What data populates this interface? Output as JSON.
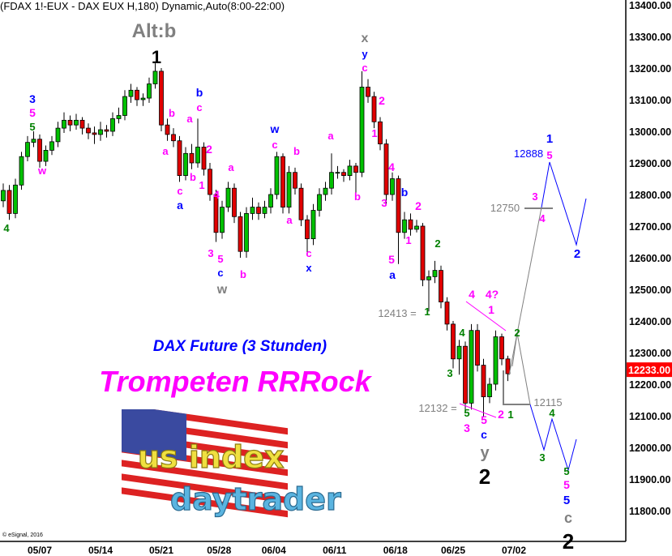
{
  "header": {
    "title": "(FDAX 1!-EUX - DAX EUX H,180) Dynamic,Auto(8:00-22:00)"
  },
  "notes": {
    "subtitle": "DAX Future (3 Stunden)",
    "headline": "Trompeten RRRock",
    "copyright": "© eSignal, 2016"
  },
  "logo": {
    "line1": "us index",
    "line2": "daytrader"
  },
  "colors": {
    "up": "#00c000",
    "down": "#e00000",
    "last_price_bg": "#ff0000",
    "magenta": "#ff00ff",
    "blue": "#0000ff",
    "green": "#008000",
    "gray": "#808080"
  },
  "chart_data": {
    "type": "candlestick",
    "title": "(FDAX 1!-EUX - DAX EUX H,180) Dynamic,Auto(8:00-22:00)",
    "ylim": [
      11730,
      13420
    ],
    "yticks": [
      "13400.00",
      "13300.00",
      "13200.00",
      "13100.00",
      "13000.00",
      "12900.00",
      "12800.00",
      "12700.00",
      "12600.00",
      "12500.00",
      "12400.00",
      "12300.00",
      "12200.00",
      "12100.00",
      "12000.00",
      "11900.00",
      "11800.00"
    ],
    "xticks": [
      {
        "label": "05/07",
        "bar": 6
      },
      {
        "label": "05/14",
        "bar": 16
      },
      {
        "label": "05/21",
        "bar": 26
      },
      {
        "label": "05/28",
        "bar": 35.5
      },
      {
        "label": "06/04",
        "bar": 44.5
      },
      {
        "label": "06/11",
        "bar": 54.5
      },
      {
        "label": "06/18",
        "bar": 64.5
      },
      {
        "label": "06/25",
        "bar": 74
      },
      {
        "label": "07/02",
        "bar": 84
      }
    ],
    "last_price": "12233.00",
    "ohlc": [
      [
        12780,
        12835,
        12760,
        12813
      ],
      [
        12813,
        12830,
        12720,
        12740
      ],
      [
        12740,
        12850,
        12725,
        12830
      ],
      [
        12830,
        12935,
        12815,
        12920
      ],
      [
        12920,
        12985,
        12905,
        12965
      ],
      [
        12965,
        13000,
        12950,
        12975
      ],
      [
        12975,
        12990,
        12885,
        12905
      ],
      [
        12905,
        12955,
        12890,
        12940
      ],
      [
        12940,
        12985,
        12925,
        12967
      ],
      [
        12967,
        13030,
        12950,
        13010
      ],
      [
        13010,
        13060,
        12995,
        13035
      ],
      [
        13035,
        13050,
        13000,
        13020
      ],
      [
        13020,
        13055,
        13005,
        13035
      ],
      [
        13035,
        13045,
        12990,
        13010
      ],
      [
        13010,
        13025,
        12975,
        12995
      ],
      [
        12995,
        13015,
        12960,
        12990
      ],
      [
        12990,
        13030,
        12970,
        13005
      ],
      [
        13005,
        13020,
        12980,
        13000
      ],
      [
        13000,
        13060,
        12985,
        13040
      ],
      [
        13040,
        13075,
        13025,
        13050
      ],
      [
        13050,
        13130,
        13035,
        13110
      ],
      [
        13110,
        13150,
        13090,
        13130
      ],
      [
        13130,
        13140,
        13080,
        13100
      ],
      [
        13100,
        13120,
        13080,
        13105
      ],
      [
        13105,
        13170,
        13090,
        13150
      ],
      [
        13150,
        13215,
        13135,
        13190
      ],
      [
        13190,
        13200,
        13000,
        13020
      ],
      [
        13020,
        13040,
        12970,
        12990
      ],
      [
        12990,
        13010,
        12950,
        12970
      ],
      [
        12970,
        12985,
        12840,
        12860
      ],
      [
        12860,
        12950,
        12845,
        12930
      ],
      [
        12930,
        12960,
        12880,
        12900
      ],
      [
        12900,
        13040,
        12885,
        12950
      ],
      [
        12950,
        12965,
        12860,
        12880
      ],
      [
        12880,
        12900,
        12780,
        12800
      ],
      [
        12800,
        12815,
        12650,
        12680
      ],
      [
        12680,
        12780,
        12660,
        12760
      ],
      [
        12760,
        12840,
        12745,
        12820
      ],
      [
        12820,
        12835,
        12710,
        12730
      ],
      [
        12730,
        12745,
        12600,
        12620
      ],
      [
        12620,
        12760,
        12600,
        12740
      ],
      [
        12740,
        12790,
        12720,
        12760
      ],
      [
        12760,
        12775,
        12720,
        12740
      ],
      [
        12740,
        12780,
        12725,
        12760
      ],
      [
        12760,
        12820,
        12740,
        12800
      ],
      [
        12800,
        12935,
        12785,
        12920
      ],
      [
        12920,
        12930,
        12740,
        12760
      ],
      [
        12760,
        12890,
        12740,
        12870
      ],
      [
        12870,
        12885,
        12800,
        12820
      ],
      [
        12820,
        12835,
        12700,
        12720
      ],
      [
        12720,
        12735,
        12610,
        12660
      ],
      [
        12660,
        12770,
        12640,
        12750
      ],
      [
        12750,
        12820,
        12730,
        12800
      ],
      [
        12800,
        12840,
        12780,
        12820
      ],
      [
        12820,
        12930,
        12800,
        12870
      ],
      [
        12870,
        12890,
        12850,
        12870
      ],
      [
        12870,
        12880,
        12840,
        12860
      ],
      [
        12860,
        12910,
        12845,
        12890
      ],
      [
        12890,
        12900,
        12800,
        12870
      ],
      [
        12870,
        13190,
        12855,
        13140
      ],
      [
        13140,
        13165,
        13090,
        13110
      ],
      [
        13110,
        13125,
        13010,
        13030
      ],
      [
        13030,
        13045,
        12940,
        12960
      ],
      [
        12960,
        12975,
        12770,
        12800
      ],
      [
        12800,
        12870,
        12780,
        12850
      ],
      [
        12850,
        12860,
        12580,
        12680
      ],
      [
        12680,
        12745,
        12660,
        12720
      ],
      [
        12720,
        12740,
        12670,
        12690
      ],
      [
        12690,
        12720,
        12680,
        12700
      ],
      [
        12700,
        12710,
        12510,
        12530
      ],
      [
        12530,
        12560,
        12430,
        12540
      ],
      [
        12540,
        12590,
        12520,
        12560
      ],
      [
        12560,
        12575,
        12440,
        12460
      ],
      [
        12460,
        12475,
        12370,
        12390
      ],
      [
        12390,
        12400,
        12250,
        12280
      ],
      [
        12280,
        12340,
        12230,
        12320
      ],
      [
        12320,
        12335,
        12110,
        12140
      ],
      [
        12140,
        12390,
        12120,
        12370
      ],
      [
        12370,
        12390,
        12240,
        12260
      ],
      [
        12260,
        12280,
        12095,
        12160
      ],
      [
        12160,
        12220,
        12140,
        12200
      ],
      [
        12200,
        12370,
        12180,
        12350
      ],
      [
        12350,
        12360,
        12260,
        12280
      ],
      [
        12280,
        12290,
        12210,
        12233
      ]
    ],
    "annotations": [
      {
        "text": "Alt:b",
        "color": "gray"
      },
      {
        "text": "1",
        "color": "black"
      },
      {
        "text": "3",
        "color": "blue"
      },
      {
        "text": "5",
        "color": "magenta"
      },
      {
        "text": "5",
        "color": "green"
      },
      {
        "text": "w",
        "color": "magenta"
      },
      {
        "text": "4",
        "color": "green"
      },
      {
        "text": "a",
        "color": "magenta"
      },
      {
        "text": "b",
        "color": "magenta"
      },
      {
        "text": "c",
        "color": "magenta"
      },
      {
        "text": "a",
        "color": "blue"
      },
      {
        "text": "a",
        "color": "magenta"
      },
      {
        "text": "b",
        "color": "magenta"
      },
      {
        "text": "b",
        "color": "blue"
      },
      {
        "text": "c",
        "color": "magenta"
      },
      {
        "text": "2",
        "color": "magenta"
      },
      {
        "text": "1",
        "color": "magenta"
      },
      {
        "text": "4",
        "color": "magenta"
      },
      {
        "text": "a",
        "color": "magenta"
      },
      {
        "text": "3",
        "color": "magenta"
      },
      {
        "text": "5",
        "color": "magenta"
      },
      {
        "text": "c",
        "color": "blue"
      },
      {
        "text": "w",
        "color": "gray"
      },
      {
        "text": "b",
        "color": "magenta"
      },
      {
        "text": "w",
        "color": "blue"
      },
      {
        "text": "c",
        "color": "magenta"
      },
      {
        "text": "b",
        "color": "magenta"
      },
      {
        "text": "a",
        "color": "magenta"
      },
      {
        "text": "a",
        "color": "magenta"
      },
      {
        "text": "c",
        "color": "magenta"
      },
      {
        "text": "x",
        "color": "blue"
      },
      {
        "text": "b",
        "color": "magenta"
      },
      {
        "text": "x",
        "color": "gray"
      },
      {
        "text": "y",
        "color": "blue"
      },
      {
        "text": "c",
        "color": "magenta"
      },
      {
        "text": "2",
        "color": "magenta"
      },
      {
        "text": "1",
        "color": "magenta"
      },
      {
        "text": "4",
        "color": "magenta"
      },
      {
        "text": "3",
        "color": "magenta"
      },
      {
        "text": "b",
        "color": "blue"
      },
      {
        "text": "2",
        "color": "magenta"
      },
      {
        "text": "1",
        "color": "magenta"
      },
      {
        "text": "5",
        "color": "magenta"
      },
      {
        "text": "a",
        "color": "blue"
      },
      {
        "text": "2",
        "color": "green"
      },
      {
        "text": "12413 =",
        "color": "gray"
      },
      {
        "text": "1",
        "color": "green"
      },
      {
        "text": "4",
        "color": "magenta"
      },
      {
        "text": "4?",
        "color": "magenta"
      },
      {
        "text": "1",
        "color": "magenta"
      },
      {
        "text": "2",
        "color": "green"
      },
      {
        "text": "4",
        "color": "green"
      },
      {
        "text": "3",
        "color": "green"
      },
      {
        "text": "12132 =",
        "color": "gray"
      },
      {
        "text": "5",
        "color": "green"
      },
      {
        "text": "3",
        "color": "magenta"
      },
      {
        "text": "5",
        "color": "magenta"
      },
      {
        "text": "c",
        "color": "blue"
      },
      {
        "text": "y",
        "color": "gray"
      },
      {
        "text": "2",
        "color": "black"
      },
      {
        "text": "2",
        "color": "magenta"
      },
      {
        "text": "1",
        "color": "green"
      },
      {
        "text": "12750",
        "color": "gray"
      },
      {
        "text": "12115",
        "color": "gray"
      },
      {
        "text": "1",
        "color": "blue"
      },
      {
        "text": "12888",
        "color": "blue"
      },
      {
        "text": "5",
        "color": "magenta"
      },
      {
        "text": "3",
        "color": "magenta"
      },
      {
        "text": "4",
        "color": "magenta"
      },
      {
        "text": "2",
        "color": "blue"
      },
      {
        "text": "4",
        "color": "green"
      },
      {
        "text": "3",
        "color": "green"
      },
      {
        "text": "5",
        "color": "green"
      },
      {
        "text": "5",
        "color": "magenta"
      },
      {
        "text": "5",
        "color": "blue"
      },
      {
        "text": "c",
        "color": "gray"
      },
      {
        "text": "2",
        "color": "black"
      }
    ]
  }
}
